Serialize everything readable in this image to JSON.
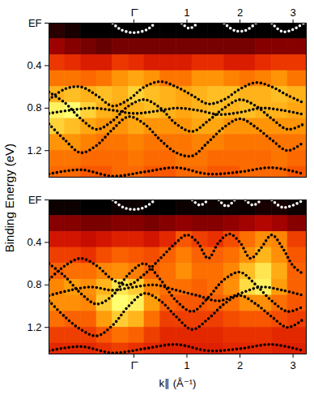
{
  "y_label": "Binding Energy (eV)",
  "chart_data": [
    {
      "type": "heatmap",
      "xlim": [
        -1.6,
        3.25
      ],
      "xticks": [
        {
          "value": 0,
          "label": "Γ̄"
        },
        1,
        2,
        3
      ],
      "ylim": [
        1.45,
        0
      ],
      "yticks": [
        {
          "value": 0,
          "label": "EF"
        },
        0.4,
        0.8,
        1.2
      ],
      "heatmap": {
        "x_edges": [
          -1.6,
          -1.3,
          -1.0,
          -0.7,
          -0.4,
          -0.1,
          0.2,
          0.5,
          0.8,
          1.1,
          1.4,
          1.7,
          2.0,
          2.3,
          2.6,
          2.9,
          3.25
        ],
        "y_edges": [
          0,
          0.15,
          0.3,
          0.45,
          0.6,
          0.75,
          0.9,
          1.05,
          1.2,
          1.35,
          1.45
        ],
        "values": [
          [
            0.1,
            0.08,
            0.05,
            0.05,
            0.05,
            0.05,
            0.05,
            0.05,
            0.05,
            0.05,
            0.05,
            0.05,
            0.05,
            0.05,
            0.05,
            0.05
          ],
          [
            0.25,
            0.22,
            0.2,
            0.18,
            0.2,
            0.2,
            0.2,
            0.2,
            0.2,
            0.2,
            0.2,
            0.2,
            0.2,
            0.22,
            0.22,
            0.22
          ],
          [
            0.4,
            0.38,
            0.35,
            0.35,
            0.4,
            0.38,
            0.35,
            0.35,
            0.35,
            0.38,
            0.38,
            0.35,
            0.35,
            0.38,
            0.4,
            0.4
          ],
          [
            0.5,
            0.5,
            0.48,
            0.5,
            0.55,
            0.58,
            0.55,
            0.5,
            0.5,
            0.55,
            0.55,
            0.52,
            0.5,
            0.52,
            0.55,
            0.5
          ],
          [
            0.6,
            0.62,
            0.6,
            0.62,
            0.6,
            0.65,
            0.62,
            0.6,
            0.58,
            0.6,
            0.62,
            0.62,
            0.6,
            0.6,
            0.62,
            0.6
          ],
          [
            0.7,
            0.72,
            0.65,
            0.6,
            0.58,
            0.6,
            0.62,
            0.6,
            0.58,
            0.6,
            0.62,
            0.6,
            0.62,
            0.6,
            0.6,
            0.58
          ],
          [
            0.65,
            0.62,
            0.58,
            0.55,
            0.55,
            0.58,
            0.55,
            0.55,
            0.55,
            0.58,
            0.58,
            0.55,
            0.55,
            0.55,
            0.55,
            0.55
          ],
          [
            0.55,
            0.55,
            0.52,
            0.5,
            0.5,
            0.52,
            0.5,
            0.5,
            0.5,
            0.52,
            0.52,
            0.5,
            0.5,
            0.5,
            0.5,
            0.5
          ],
          [
            0.5,
            0.5,
            0.48,
            0.48,
            0.48,
            0.5,
            0.48,
            0.48,
            0.5,
            0.5,
            0.48,
            0.48,
            0.48,
            0.48,
            0.5,
            0.48
          ],
          [
            0.48,
            0.48,
            0.45,
            0.45,
            0.48,
            0.48,
            0.45,
            0.45,
            0.48,
            0.48,
            0.45,
            0.45,
            0.48,
            0.48,
            0.48,
            0.45
          ]
        ]
      },
      "series": [
        {
          "type": "line",
          "color": "#000000",
          "line_style": "dotted",
          "x": [
            -1.6,
            -1.3,
            -1.0,
            -0.7,
            -0.4,
            -0.1,
            0.2,
            0.5,
            0.8,
            1.1,
            1.4,
            1.7,
            2.0,
            2.3,
            2.6,
            2.9,
            3.2
          ],
          "values": [
            0.72,
            0.62,
            0.6,
            0.68,
            0.78,
            0.72,
            0.6,
            0.55,
            0.6,
            0.68,
            0.76,
            0.72,
            0.62,
            0.56,
            0.6,
            0.68,
            0.75
          ]
        },
        {
          "type": "line",
          "color": "#000000",
          "line_style": "dotted",
          "x": [
            -1.6,
            -1.2,
            -0.8,
            -0.4,
            0,
            0.4,
            0.8,
            1.2,
            1.6,
            2.0,
            2.4,
            2.8,
            3.2
          ],
          "values": [
            0.85,
            0.82,
            0.8,
            0.82,
            0.85,
            0.83,
            0.8,
            0.82,
            0.86,
            0.84,
            0.8,
            0.82,
            0.86
          ]
        },
        {
          "type": "line",
          "color": "#000000",
          "line_style": "dotted",
          "x": [
            -1.6,
            -1.3,
            -1.0,
            -0.7,
            -0.4,
            -0.1,
            0.2,
            0.5,
            0.8,
            1.1,
            1.4,
            1.7,
            2.0,
            2.3,
            2.6,
            2.9,
            3.2
          ],
          "values": [
            0.95,
            1.1,
            1.22,
            1.15,
            1.0,
            0.88,
            0.95,
            1.1,
            1.22,
            1.25,
            1.12,
            0.98,
            0.9,
            0.98,
            1.1,
            1.2,
            1.12
          ]
        },
        {
          "type": "line",
          "color": "#000000",
          "line_style": "dotted",
          "x": [
            -1.6,
            -1.3,
            -1.0,
            -0.7,
            -0.4,
            -0.1,
            0.2,
            0.5,
            0.8,
            1.1,
            1.4,
            1.7,
            2.0,
            2.3,
            2.6,
            2.9,
            3.2
          ],
          "values": [
            0.65,
            0.75,
            0.9,
            1.0,
            0.92,
            0.78,
            0.72,
            0.8,
            0.95,
            1.02,
            0.92,
            0.8,
            0.72,
            0.78,
            0.9,
            1.0,
            0.95
          ]
        },
        {
          "type": "line",
          "color": "#000000",
          "line_style": "dotted",
          "x": [
            -1.6,
            -1.0,
            -0.4,
            0.2,
            0.8,
            1.4,
            2.0,
            2.6,
            3.2
          ],
          "values": [
            1.42,
            1.38,
            1.44,
            1.4,
            1.36,
            1.42,
            1.4,
            1.36,
            1.42
          ]
        },
        {
          "type": "line",
          "color": "#ffffff",
          "line_style": "dotted",
          "x": [
            -0.4,
            -0.25,
            0,
            0.25,
            0.4,
            0.65,
            0.9,
            1.05,
            1.2,
            1.45,
            1.7,
            1.9,
            2.1,
            2.3,
            2.45,
            2.6,
            2.8,
            3.0,
            3.2
          ],
          "values": [
            0.0,
            0.06,
            0.09,
            0.06,
            0.0,
            null,
            0.0,
            0.05,
            0.0,
            null,
            0.0,
            0.07,
            0.07,
            0.0,
            null,
            0.0,
            0.08,
            0.06,
            0.0
          ]
        }
      ]
    },
    {
      "type": "heatmap",
      "x_label": "k∥ (Å⁻¹)",
      "xlim": [
        -1.6,
        3.25
      ],
      "xticks": [
        {
          "value": 0,
          "label": "Γ̄"
        },
        1,
        2,
        3
      ],
      "ylim": [
        1.45,
        0
      ],
      "yticks": [
        {
          "value": 0,
          "label": "EF"
        },
        0.4,
        0.8,
        1.2
      ],
      "heatmap": {
        "x_edges": [
          -1.6,
          -1.3,
          -1.0,
          -0.7,
          -0.4,
          -0.1,
          0.2,
          0.5,
          0.8,
          1.1,
          1.4,
          1.7,
          2.0,
          2.3,
          2.6,
          2.9,
          3.25
        ],
        "y_edges": [
          0,
          0.15,
          0.3,
          0.45,
          0.6,
          0.75,
          0.9,
          1.05,
          1.2,
          1.35,
          1.45
        ],
        "values": [
          [
            0.1,
            0.1,
            0.08,
            0.08,
            0.1,
            0.1,
            0.08,
            0.08,
            0.1,
            0.1,
            0.1,
            0.1,
            0.1,
            0.12,
            0.12,
            0.1
          ],
          [
            0.3,
            0.3,
            0.28,
            0.28,
            0.3,
            0.3,
            0.28,
            0.3,
            0.32,
            0.3,
            0.3,
            0.32,
            0.35,
            0.38,
            0.35,
            0.3
          ],
          [
            0.45,
            0.45,
            0.42,
            0.45,
            0.48,
            0.48,
            0.45,
            0.5,
            0.6,
            0.55,
            0.52,
            0.58,
            0.65,
            0.72,
            0.7,
            0.55
          ],
          [
            0.55,
            0.55,
            0.52,
            0.58,
            0.62,
            0.6,
            0.58,
            0.62,
            0.68,
            0.62,
            0.62,
            0.65,
            0.72,
            0.8,
            0.72,
            0.6
          ],
          [
            0.62,
            0.65,
            0.65,
            0.7,
            0.72,
            0.68,
            0.62,
            0.65,
            0.72,
            0.65,
            0.65,
            0.7,
            0.82,
            0.9,
            0.78,
            0.62
          ],
          [
            0.7,
            0.75,
            0.72,
            0.8,
            0.9,
            0.85,
            0.7,
            0.65,
            0.65,
            0.62,
            0.65,
            0.72,
            0.88,
            0.92,
            0.75,
            0.62
          ],
          [
            0.72,
            0.72,
            0.7,
            0.85,
            0.95,
            0.92,
            0.75,
            0.62,
            0.6,
            0.6,
            0.62,
            0.65,
            0.72,
            0.72,
            0.65,
            0.6
          ],
          [
            0.65,
            0.62,
            0.62,
            0.75,
            0.85,
            0.8,
            0.65,
            0.55,
            0.55,
            0.55,
            0.55,
            0.58,
            0.6,
            0.6,
            0.58,
            0.55
          ],
          [
            0.55,
            0.55,
            0.55,
            0.6,
            0.65,
            0.62,
            0.55,
            0.5,
            0.5,
            0.5,
            0.5,
            0.52,
            0.52,
            0.52,
            0.5,
            0.5
          ],
          [
            0.5,
            0.5,
            0.5,
            0.52,
            0.55,
            0.52,
            0.5,
            0.48,
            0.48,
            0.48,
            0.48,
            0.5,
            0.5,
            0.5,
            0.48,
            0.48
          ]
        ]
      },
      "series": [
        {
          "type": "line",
          "color": "#000000",
          "line_style": "dotted",
          "x": [
            -1.6,
            -1.3,
            -1.0,
            -0.7,
            -0.4,
            -0.1,
            0.2,
            0.5,
            0.8,
            1.0,
            1.2,
            1.4,
            1.6,
            1.8,
            2.0,
            2.2,
            2.4,
            2.6,
            2.8,
            3.0,
            3.2
          ],
          "values": [
            0.75,
            0.62,
            0.55,
            0.62,
            0.75,
            0.8,
            0.7,
            0.55,
            0.4,
            0.33,
            0.4,
            0.55,
            0.4,
            0.32,
            0.4,
            0.55,
            0.45,
            0.33,
            0.45,
            0.62,
            0.7
          ]
        },
        {
          "type": "line",
          "color": "#000000",
          "line_style": "dotted",
          "x": [
            -1.6,
            -1.2,
            -0.8,
            -0.4,
            0,
            0.4,
            0.8,
            1.2,
            1.6,
            2.0,
            2.4,
            2.8,
            3.2
          ],
          "values": [
            0.9,
            0.85,
            0.82,
            0.85,
            0.82,
            0.8,
            0.85,
            0.9,
            0.95,
            0.88,
            0.82,
            0.85,
            0.9
          ]
        },
        {
          "type": "line",
          "color": "#000000",
          "line_style": "dotted",
          "x": [
            -1.6,
            -1.3,
            -1.0,
            -0.7,
            -0.4,
            -0.1,
            0.2,
            0.5,
            0.8,
            1.1,
            1.4,
            1.7,
            2.0,
            2.3,
            2.6,
            2.9,
            3.2
          ],
          "values": [
            0.95,
            1.1,
            1.22,
            1.28,
            1.18,
            1.0,
            0.88,
            0.95,
            1.1,
            1.22,
            1.12,
            0.98,
            0.9,
            0.98,
            1.1,
            1.2,
            1.12
          ]
        },
        {
          "type": "line",
          "color": "#000000",
          "line_style": "dotted",
          "x": [
            -1.6,
            -1.3,
            -1.0,
            -0.7,
            -0.4,
            -0.1,
            0.2,
            0.5,
            0.8,
            1.1,
            1.4,
            1.7,
            2.0,
            2.3,
            2.6,
            2.9,
            3.2
          ],
          "values": [
            0.6,
            0.72,
            0.88,
            0.98,
            0.9,
            0.7,
            0.6,
            0.75,
            0.95,
            1.05,
            0.92,
            0.75,
            0.68,
            0.8,
            0.95,
            1.05,
            1.0
          ]
        },
        {
          "type": "line",
          "color": "#000000",
          "line_style": "dotted",
          "x": [
            -1.6,
            -1.0,
            -0.4,
            0.2,
            0.8,
            1.4,
            2.0,
            2.6,
            3.2
          ],
          "values": [
            1.42,
            1.38,
            1.44,
            1.4,
            1.36,
            1.42,
            1.4,
            1.36,
            1.42
          ]
        },
        {
          "type": "line",
          "color": "#ffffff",
          "line_style": "dotted",
          "x": [
            -0.4,
            -0.2,
            0,
            0.2,
            0.4,
            0.75,
            1.1,
            1.25,
            1.4,
            1.5,
            1.6,
            1.75,
            1.9,
            2.0,
            2.1,
            2.25,
            2.4,
            2.5,
            2.6,
            2.8,
            3.0,
            3.2
          ],
          "values": [
            0.0,
            0.07,
            0.09,
            0.07,
            0.0,
            null,
            0.0,
            0.05,
            0.0,
            null,
            0.0,
            0.06,
            0.0,
            null,
            0.0,
            0.05,
            0.0,
            null,
            0.0,
            0.07,
            0.05,
            0.0
          ]
        }
      ]
    }
  ]
}
